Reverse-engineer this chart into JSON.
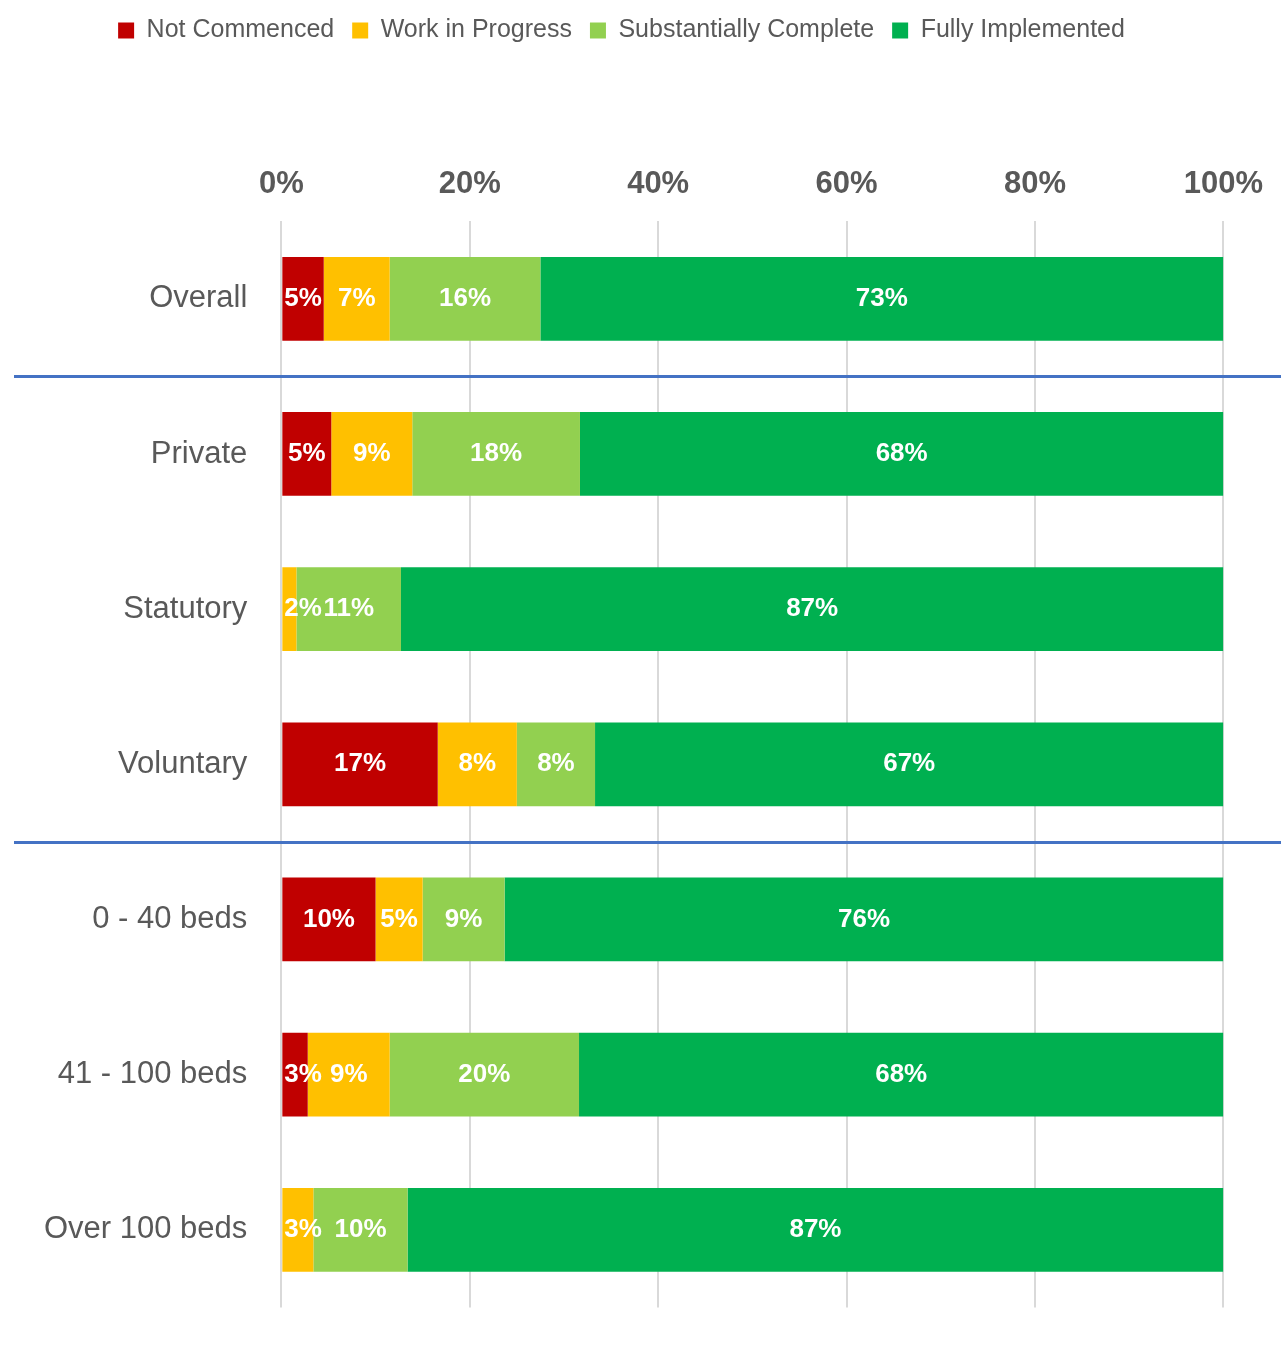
{
  "chart_data": {
    "type": "bar",
    "orientation": "horizontal",
    "stacked": true,
    "categories": [
      "Overall",
      "Private",
      "Statutory",
      "Voluntary",
      "0 - 40 beds",
      "41 - 100 beds",
      "Over 100 beds"
    ],
    "series": [
      {
        "name": "Not Commenced",
        "color": "#c00000",
        "values": [
          4.5,
          5.3,
          null,
          16.6,
          10.0,
          2.8,
          null
        ],
        "value_labels": [
          "5%",
          "5%",
          null,
          "17%",
          "10%",
          "3%",
          null
        ]
      },
      {
        "name": "Work in Progress",
        "color": "#ffc000",
        "values": [
          7.0,
          8.6,
          1.6,
          8.4,
          5.0,
          8.7,
          3.4
        ],
        "value_labels": [
          "7%",
          "9%",
          "2%",
          "8%",
          "5%",
          "9%",
          "3%"
        ]
      },
      {
        "name": "Substantially Complete",
        "color": "#92d050",
        "values": [
          16.0,
          17.8,
          11.1,
          8.3,
          8.7,
          20.1,
          10.0
        ],
        "value_labels": [
          "16%",
          "18%",
          "11%",
          "8%",
          "9%",
          "20%",
          "10%"
        ]
      },
      {
        "name": "Fully Implemented",
        "color": "#00b050",
        "values": [
          72.5,
          68.3,
          87.3,
          66.7,
          76.3,
          68.4,
          86.6
        ],
        "value_labels": [
          "73%",
          "68%",
          "87%",
          "67%",
          "76%",
          "68%",
          "87%"
        ]
      }
    ],
    "xlim": [
      0,
      100
    ],
    "xticks": [
      {
        "value": 0,
        "label": "0%"
      },
      {
        "value": 20,
        "label": "20%"
      },
      {
        "value": 40,
        "label": "40%"
      },
      {
        "value": 60,
        "label": "60%"
      },
      {
        "value": 80,
        "label": "80%"
      },
      {
        "value": 100,
        "label": "100%"
      }
    ],
    "grid": "x",
    "legend": "top"
  }
}
